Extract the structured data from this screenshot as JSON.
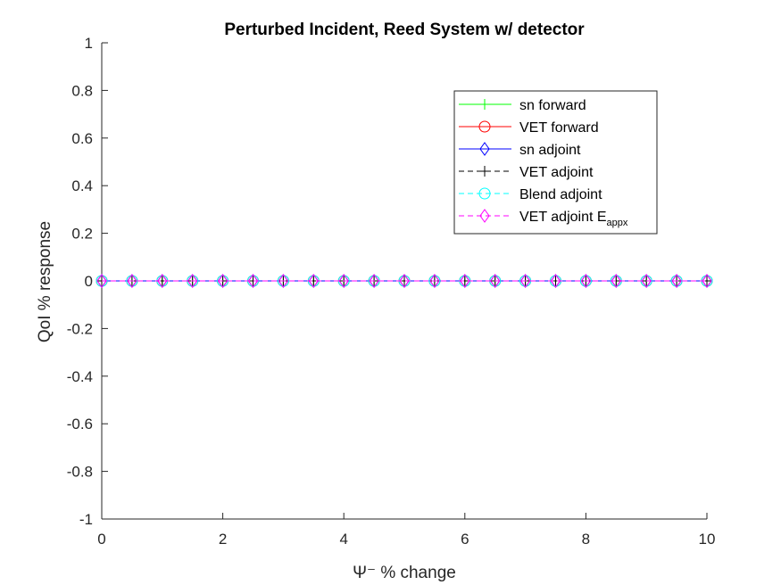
{
  "chart_data": {
    "type": "line",
    "title": "Perturbed Incident, Reed System w/ detector",
    "xlabel": "Ψ⁻ % change",
    "ylabel": "QoI % response",
    "xlim": [
      0,
      10
    ],
    "ylim": [
      -1,
      1
    ],
    "xticks": [
      "0",
      "2",
      "4",
      "6",
      "8",
      "10"
    ],
    "yticks": [
      "-1",
      "-0.8",
      "-0.6",
      "-0.4",
      "-0.2",
      "0",
      "0.2",
      "0.4",
      "0.6",
      "0.8",
      "1"
    ],
    "grid": false,
    "legend_position": "top-right",
    "x": [
      0,
      0.5,
      1,
      1.5,
      2,
      2.5,
      3,
      3.5,
      4,
      4.5,
      5,
      5.5,
      6,
      6.5,
      7,
      7.5,
      8,
      8.5,
      9,
      9.5,
      10
    ],
    "series": [
      {
        "name": "sn forward",
        "color": "#00ff00",
        "marker": "plus",
        "dash": "solid",
        "values": [
          0,
          0,
          0,
          0,
          0,
          0,
          0,
          0,
          0,
          0,
          0,
          0,
          0,
          0,
          0,
          0,
          0,
          0,
          0,
          0,
          0
        ]
      },
      {
        "name": "VET forward",
        "color": "#ff0000",
        "marker": "circle",
        "dash": "solid",
        "values": [
          0,
          0,
          0,
          0,
          0,
          0,
          0,
          0,
          0,
          0,
          0,
          0,
          0,
          0,
          0,
          0,
          0,
          0,
          0,
          0,
          0
        ]
      },
      {
        "name": "sn adjoint",
        "color": "#0000ff",
        "marker": "diamond",
        "dash": "solid",
        "values": [
          0,
          0,
          0,
          0,
          0,
          0,
          0,
          0,
          0,
          0,
          0,
          0,
          0,
          0,
          0,
          0,
          0,
          0,
          0,
          0,
          0
        ]
      },
      {
        "name": "VET adjoint",
        "color": "#000000",
        "marker": "plus",
        "dash": "dashed",
        "values": [
          0,
          0,
          0,
          0,
          0,
          0,
          0,
          0,
          0,
          0,
          0,
          0,
          0,
          0,
          0,
          0,
          0,
          0,
          0,
          0,
          0
        ]
      },
      {
        "name": "Blend adjoint",
        "color": "#00ffff",
        "marker": "circle",
        "dash": "dashed",
        "values": [
          0,
          0,
          0,
          0,
          0,
          0,
          0,
          0,
          0,
          0,
          0,
          0,
          0,
          0,
          0,
          0,
          0,
          0,
          0,
          0,
          0
        ]
      },
      {
        "name": "VET adjoint E",
        "name_subscript": "appx",
        "color": "#ff00ff",
        "marker": "diamond",
        "dash": "dashed",
        "values": [
          0,
          0,
          0,
          0,
          0,
          0,
          0,
          0,
          0,
          0,
          0,
          0,
          0,
          0,
          0,
          0,
          0,
          0,
          0,
          0,
          0
        ]
      }
    ]
  }
}
